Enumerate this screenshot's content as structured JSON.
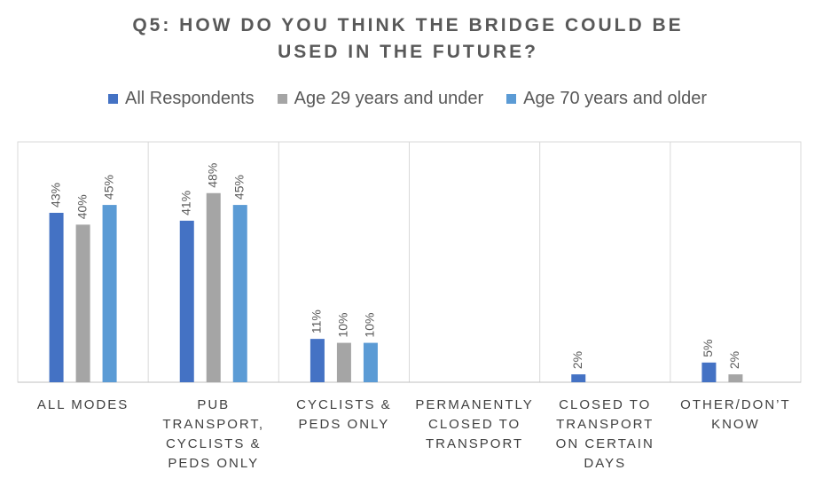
{
  "chart_data": {
    "type": "bar",
    "title": "Q5: HOW DO YOU THINK THE BRIDGE COULD BE USED IN THE FUTURE?",
    "categories": [
      "ALL MODES",
      "PUB TRANSPORT, CYCLISTS & PEDS ONLY",
      "CYCLISTS & PEDS ONLY",
      "PERMANENTLY CLOSED TO TRANSPORT",
      "CLOSED TO TRANSPORT ON CERTAIN DAYS",
      "OTHER/DON’T KNOW"
    ],
    "series": [
      {
        "name": "All Respondents",
        "color": "#4472c4",
        "values": [
          43,
          41,
          11,
          null,
          2,
          5
        ],
        "value_labels": [
          "43%",
          "41%",
          "11%",
          null,
          "2%",
          "5%"
        ]
      },
      {
        "name": "Age 29 years and under",
        "color": "#a5a5a5",
        "values": [
          40,
          48,
          10,
          null,
          null,
          2
        ],
        "value_labels": [
          "40%",
          "48%",
          "10%",
          null,
          null,
          "2%"
        ]
      },
      {
        "name": "Age 70 years and older",
        "color": "#5b9bd5",
        "values": [
          45,
          45,
          10,
          null,
          null,
          null
        ],
        "value_labels": [
          "45%",
          "45%",
          "10%",
          null,
          null,
          null
        ]
      }
    ],
    "ylim": [
      0,
      61
    ]
  }
}
